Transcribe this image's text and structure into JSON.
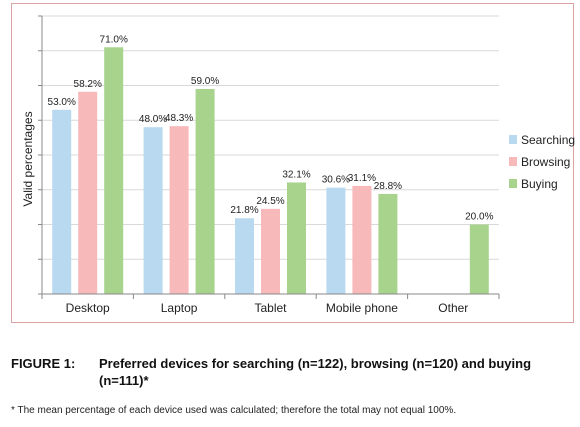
{
  "chart_data": {
    "type": "bar",
    "categories": [
      "Desktop",
      "Laptop",
      "Tablet",
      "Mobile phone",
      "Other"
    ],
    "series": [
      {
        "name": "Searching",
        "color": "#b9d9f0",
        "values": [
          53.0,
          48.0,
          21.8,
          30.6,
          null
        ],
        "labels": [
          "53.0%",
          "48.0%",
          "21.8%",
          "30.6%",
          null
        ]
      },
      {
        "name": "Browsing",
        "color": "#f8b9bb",
        "values": [
          58.2,
          48.3,
          24.5,
          31.1,
          null
        ],
        "labels": [
          "58.2%",
          "48.3%",
          "24.5%",
          "31.1%",
          null
        ]
      },
      {
        "name": "Buying",
        "color": "#a8d38d",
        "values": [
          71.0,
          59.0,
          32.1,
          28.8,
          20.0
        ],
        "labels": [
          "71.0%",
          "59.0%",
          "32.1%",
          "28.8%",
          "20.0%"
        ]
      }
    ],
    "ylabel": "Valid percentages",
    "ylim": [
      0,
      80
    ],
    "grid": true,
    "legend_position": "right"
  },
  "caption": {
    "number": "FIGURE 1:",
    "text": "Preferred devices for searching (n=122), browsing (n=120) and buying (n=111)*"
  },
  "footnote": "* The mean percentage of each device used was calculated; therefore the total may not equal 100%."
}
